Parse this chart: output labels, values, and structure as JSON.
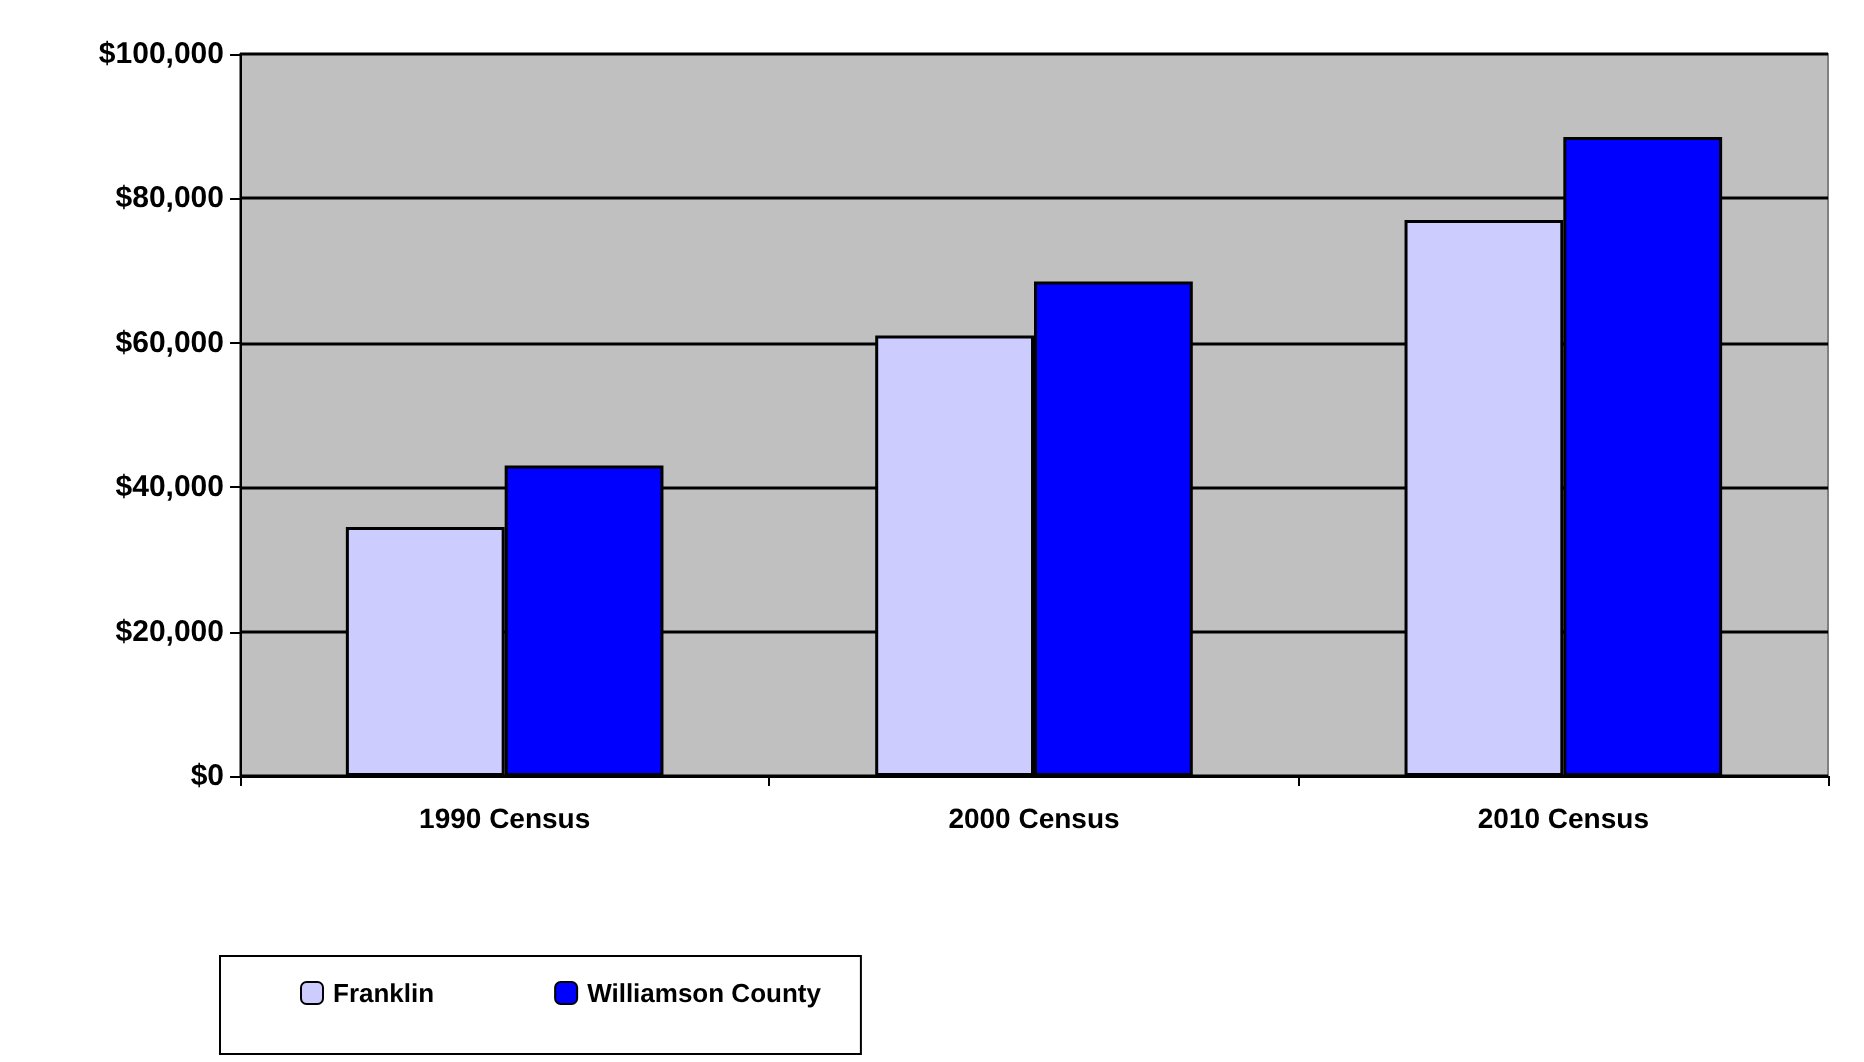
{
  "chart_data": {
    "type": "bar",
    "categories": [
      "1990 Census",
      "2000 Census",
      "2010 Census"
    ],
    "series": [
      {
        "name": "Franklin",
        "color": "#ccccff",
        "values": [
          34500,
          61000,
          77000
        ]
      },
      {
        "name": "Williamson County",
        "color": "#0000ff",
        "values": [
          43000,
          68500,
          88500
        ]
      }
    ],
    "ylim": [
      0,
      100000
    ],
    "yticks": [
      {
        "value": 0,
        "label": "$0"
      },
      {
        "value": 20000,
        "label": "$20,000"
      },
      {
        "value": 40000,
        "label": "$40,000"
      },
      {
        "value": 60000,
        "label": "$60,000"
      },
      {
        "value": 80000,
        "label": "$80,000"
      },
      {
        "value": 100000,
        "label": "$100,000"
      }
    ],
    "grid": "y",
    "legend": "bottom left"
  }
}
